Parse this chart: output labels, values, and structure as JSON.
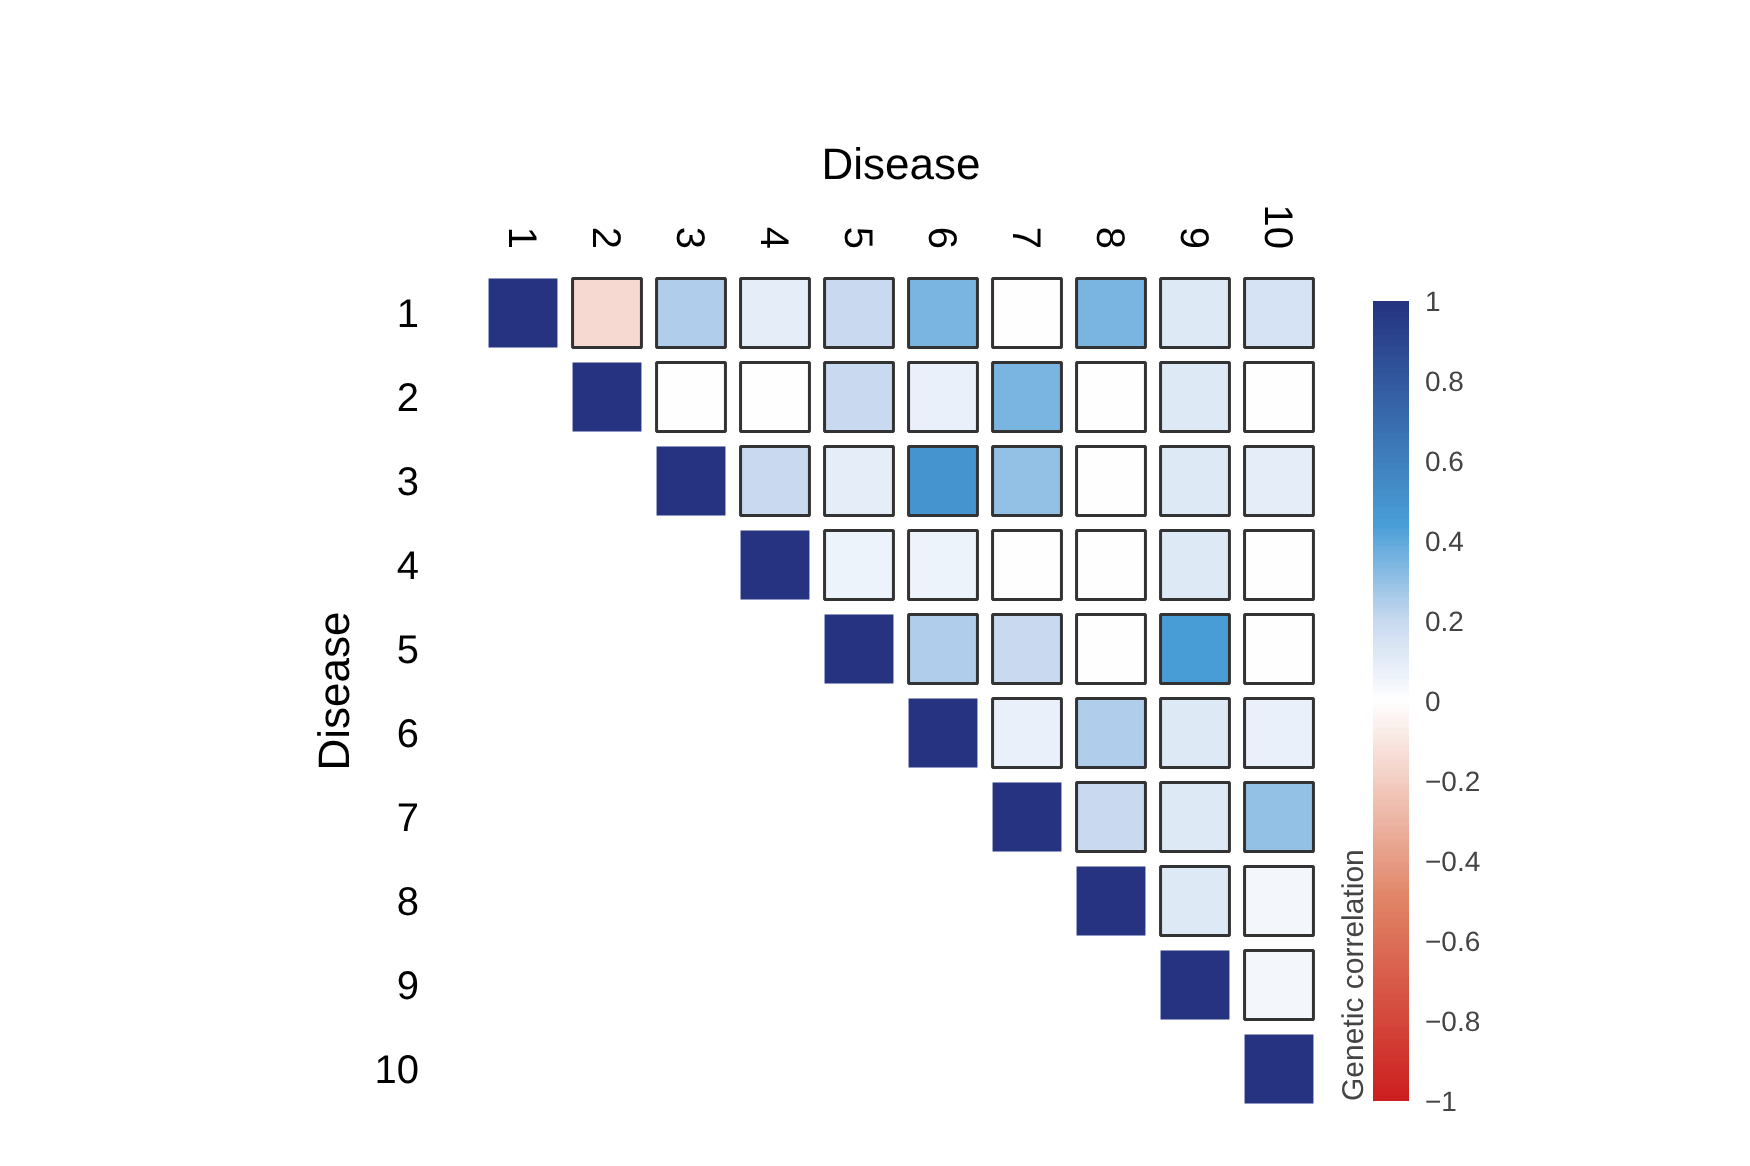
{
  "chart_data": {
    "type": "heatmap",
    "xlabel": "Disease",
    "ylabel": "Disease",
    "clabel": "Genetic correlation",
    "categories": [
      "1",
      "2",
      "3",
      "4",
      "5",
      "6",
      "7",
      "8",
      "9",
      "10"
    ],
    "y_categories": [
      "1",
      "2",
      "3",
      "4",
      "5",
      "6",
      "7",
      "8",
      "9",
      "10"
    ],
    "cells": [
      [
        1,
        -0.15,
        0.25,
        0.1,
        0.2,
        0.35,
        0,
        0.35,
        0.12,
        0.15
      ],
      [
        null,
        1,
        0,
        0,
        0.2,
        0.08,
        0.35,
        0,
        0.12,
        0
      ],
      [
        null,
        null,
        1,
        0.2,
        0.1,
        0.5,
        0.3,
        0,
        0.12,
        0.1
      ],
      [
        null,
        null,
        null,
        1,
        0.07,
        0.07,
        0,
        0,
        0.12,
        0
      ],
      [
        null,
        null,
        null,
        null,
        1,
        0.25,
        0.2,
        0,
        0.45,
        0
      ],
      [
        null,
        null,
        null,
        null,
        null,
        1,
        0.08,
        0.25,
        0.12,
        0.08
      ],
      [
        null,
        null,
        null,
        null,
        null,
        null,
        1,
        0.2,
        0.12,
        0.3
      ],
      [
        null,
        null,
        null,
        null,
        null,
        null,
        null,
        1,
        0.12,
        0.04
      ],
      [
        null,
        null,
        null,
        null,
        null,
        null,
        null,
        null,
        1,
        0.04
      ],
      [
        null,
        null,
        null,
        null,
        null,
        null,
        null,
        null,
        null,
        1
      ]
    ],
    "clim": [
      -1,
      1
    ],
    "cticks": [
      -1,
      -0.8,
      -0.6,
      -0.4,
      -0.2,
      0,
      0.2,
      0.4,
      0.6,
      0.8,
      1
    ]
  }
}
